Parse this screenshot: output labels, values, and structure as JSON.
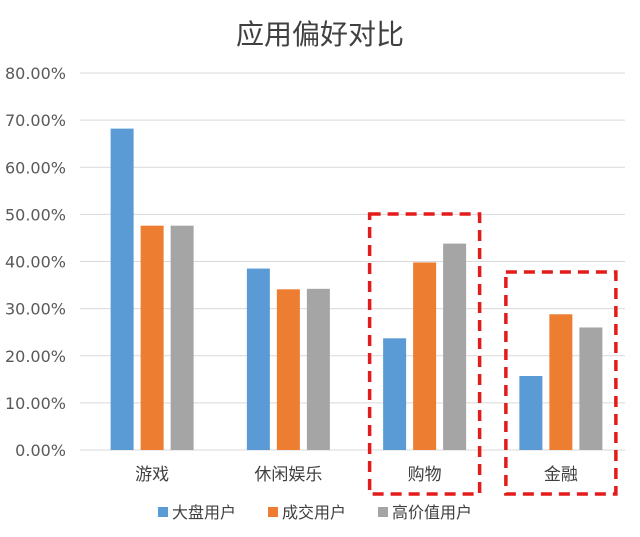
{
  "chart_data": {
    "type": "bar",
    "title": "应用偏好对比",
    "categories": [
      "游戏",
      "休闲娱乐",
      "购物",
      "金融"
    ],
    "series": [
      {
        "name": "大盘用户",
        "color": "#5B9BD5",
        "values": [
          0.682,
          0.385,
          0.237,
          0.157
        ]
      },
      {
        "name": "成交用户",
        "color": "#ED7D31",
        "values": [
          0.476,
          0.341,
          0.398,
          0.288
        ]
      },
      {
        "name": "高价值用户",
        "color": "#A5A5A5",
        "values": [
          0.476,
          0.342,
          0.438,
          0.26
        ]
      }
    ],
    "ylim": [
      0,
      0.8
    ],
    "yticks": [
      "0.00%",
      "10.00%",
      "20.00%",
      "30.00%",
      "40.00%",
      "50.00%",
      "60.00%",
      "70.00%",
      "80.00%"
    ],
    "grid": true,
    "legend_position": "bottom",
    "highlighted_categories": [
      "购物",
      "金融"
    ],
    "highlight_color": "#E31B1B",
    "axis_color": "#D9D9D9"
  }
}
